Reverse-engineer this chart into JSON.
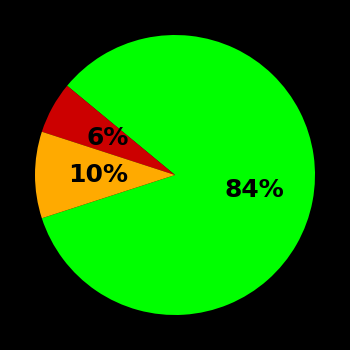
{
  "slices": [
    84,
    6,
    10
  ],
  "colors": [
    "#00ff00",
    "#cc0000",
    "#ffaa00"
  ],
  "labels": [
    "84%",
    "6%",
    "10%"
  ],
  "background_color": "#000000",
  "startangle": 198,
  "label_fontsize": 18,
  "label_fontweight": "bold",
  "label_radii": [
    0.58,
    0.55,
    0.55
  ],
  "figsize": [
    3.5,
    3.5
  ],
  "dpi": 100
}
